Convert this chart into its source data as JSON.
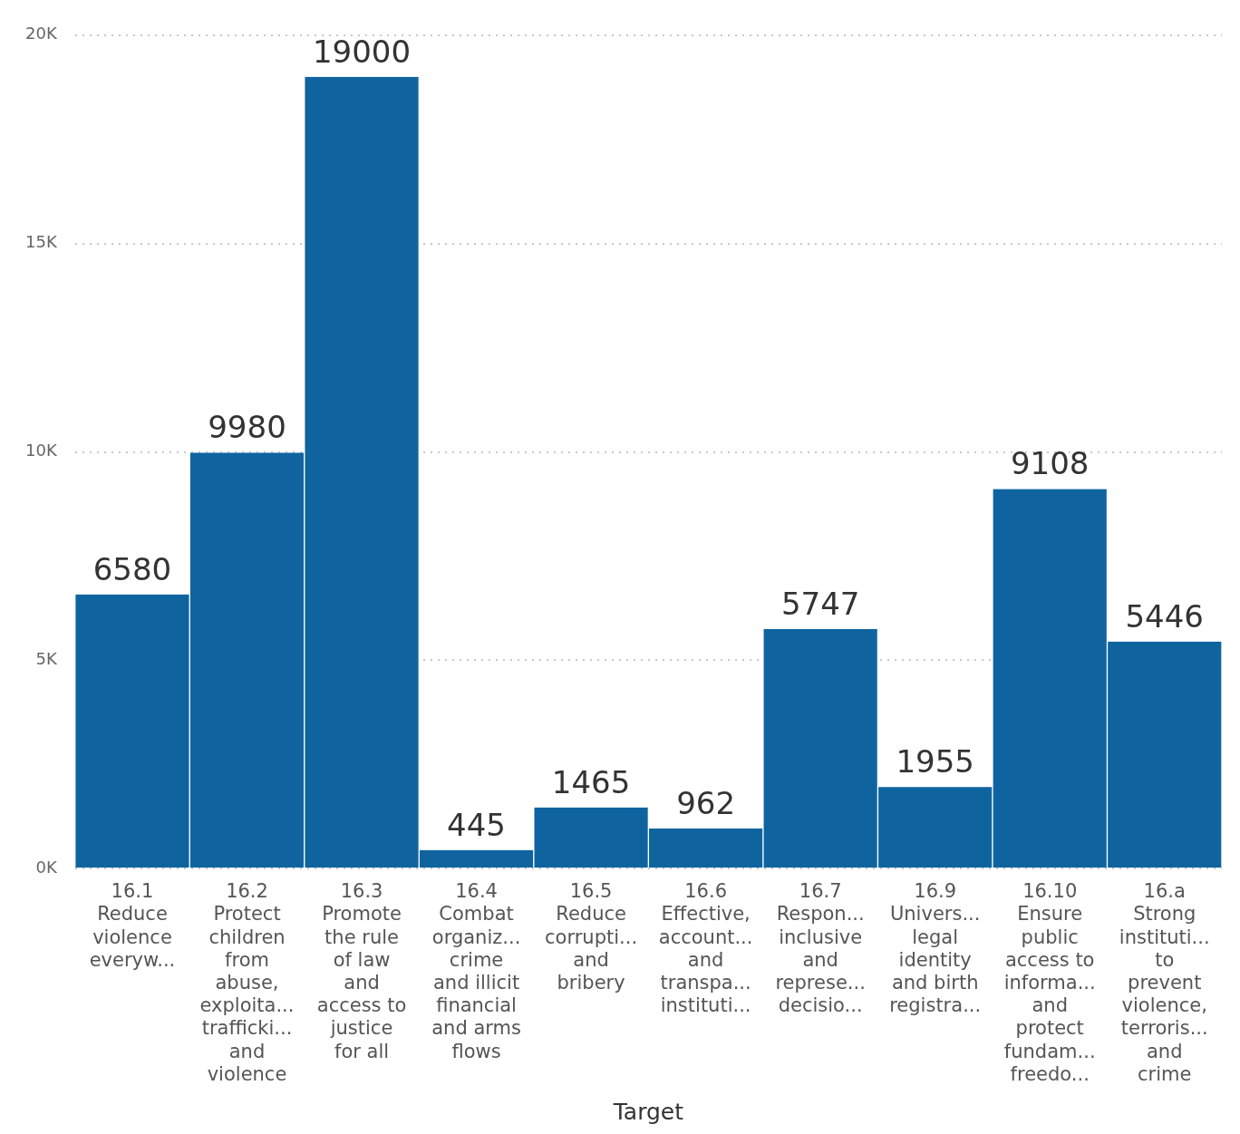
{
  "chart_data": {
    "type": "bar",
    "xlabel": "Target",
    "categories": [
      "16.1\nReduce\nviolence\neveryw...",
      "16.2\nProtect\nchildren\nfrom\nabuse,\nexploita...\ntrafficki...\nand\nviolence",
      "16.3\nPromote\nthe rule\nof law\nand\naccess to\njustice\nfor all",
      "16.4\nCombat\norganiz...\ncrime\nand illicit\nfinancial\nand arms\nflows",
      "16.5\nReduce\ncorrupti...\nand\nbribery",
      "16.6\nEffective,\naccount...\nand\ntranspa...\ninstituti...",
      "16.7\nRespon...\ninclusive\nand\nreprese...\ndecisio...",
      "16.9\nUnivers...\nlegal\nidentity\nand birth\nregistra...",
      "16.10\nEnsure\npublic\naccess to\ninforma...\nand\nprotect\nfundam...\nfreedo...",
      "16.a\nStrong\ninstituti...\nto\nprevent\nviolence,\nterroris...\nand\ncrime"
    ],
    "values": [
      6580,
      9980,
      19000,
      445,
      1465,
      962,
      5747,
      1955,
      9108,
      5446
    ],
    "color": "#0f64a0",
    "ylim": [
      0,
      20000
    ],
    "yticks": [
      {
        "value": 0,
        "label": "0K"
      },
      {
        "value": 5000,
        "label": "5K"
      },
      {
        "value": 10000,
        "label": "10K"
      },
      {
        "value": 15000,
        "label": "15K"
      },
      {
        "value": 20000,
        "label": "20K"
      }
    ],
    "grid": "y",
    "data_labels": true,
    "legend": false
  }
}
